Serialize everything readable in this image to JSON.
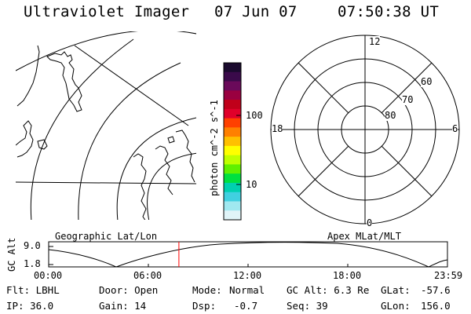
{
  "header": {
    "title": "Ultraviolet Imager",
    "date": "07 Jun 07",
    "time": "07:50:38 UT"
  },
  "colorbar": {
    "unit_label": "photon cm^-2 s^-1",
    "tick_100": "100",
    "tick_10": "10",
    "colors": [
      "#1a0a2e",
      "#3a0a4a",
      "#6a0a5a",
      "#9a0040",
      "#c0001a",
      "#e0002a",
      "#ff4000",
      "#ff8000",
      "#ffc000",
      "#ffff00",
      "#c0ff00",
      "#60f000",
      "#00e040",
      "#00d0b0",
      "#40d0e0",
      "#a0e8f0",
      "#e0f4f8"
    ]
  },
  "polar_plot": {
    "lat_labels": [
      "60",
      "70",
      "80"
    ],
    "mlt_labels": {
      "top": "12",
      "left": "18",
      "right": "6",
      "bottom": "0"
    }
  },
  "panel_labels": {
    "left": "Geographic Lat/Lon",
    "right": "Apex MLat/MLT"
  },
  "altitude_plot": {
    "ylabel": "GC Alt",
    "y_top": "9.0",
    "y_bottom": "1.8",
    "x_ticks": [
      "00:00",
      "06:00",
      "12:00",
      "18:00",
      "23:59"
    ],
    "current_time_marker_hours": 7.84,
    "marker_color": "#ff0000"
  },
  "info": {
    "row1": {
      "flt": "Flt: LBHL",
      "door": "Door: Open",
      "mode_label": "Mode:",
      "mode_value": "Normal",
      "gcalt": "GC Alt: 6.3 Re",
      "glat_label": "GLat:",
      "glat_value": "-57.6"
    },
    "row2": {
      "ip": "IP: 36.0",
      "gain": "Gain: 14",
      "dsp_label": "Dsp:",
      "dsp_value": "-0.7",
      "seq": "Seq: 39",
      "glon_label": "GLon:",
      "glon_value": "156.0"
    }
  }
}
